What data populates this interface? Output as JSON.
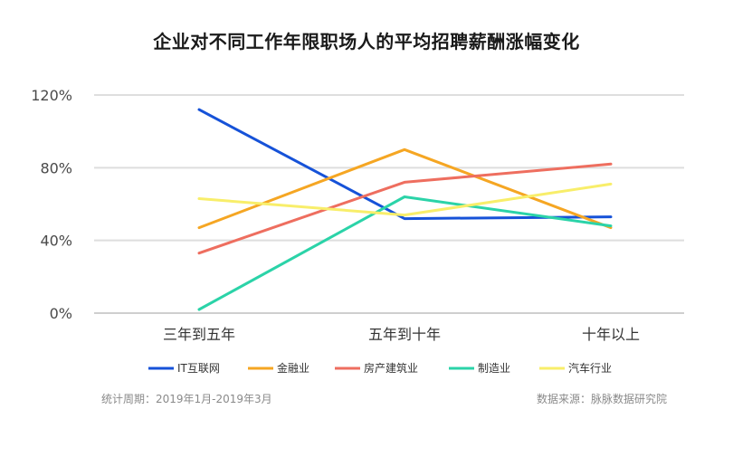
{
  "chart_data": {
    "type": "line",
    "title": "企业对不同工作年限职场人的平均招聘薪酬涨幅变化",
    "categories": [
      "三年到五年",
      "五年到十年",
      "十年以上"
    ],
    "ylim": [
      0,
      120
    ],
    "yticks": [
      0,
      40,
      80,
      120
    ],
    "ytick_labels": [
      "0%",
      "40%",
      "80%",
      "120%"
    ],
    "grid": true,
    "legend_position": "bottom",
    "series": [
      {
        "name": "IT互联网",
        "color": "#1652D8",
        "values": [
          112,
          52,
          53
        ]
      },
      {
        "name": "金融业",
        "color": "#F5A623",
        "values": [
          47,
          90,
          47
        ]
      },
      {
        "name": "房产建筑业",
        "color": "#EE6E5F",
        "values": [
          33,
          72,
          82
        ]
      },
      {
        "name": "制造业",
        "color": "#2BD3A8",
        "values": [
          2,
          64,
          48
        ]
      },
      {
        "name": "汽车行业",
        "color": "#F8EE6A",
        "values": [
          63,
          54,
          71
        ]
      }
    ]
  },
  "footer": {
    "left": "统计周期：2019年1月-2019年3月",
    "right": "数据来源：脉脉数据研究院"
  }
}
